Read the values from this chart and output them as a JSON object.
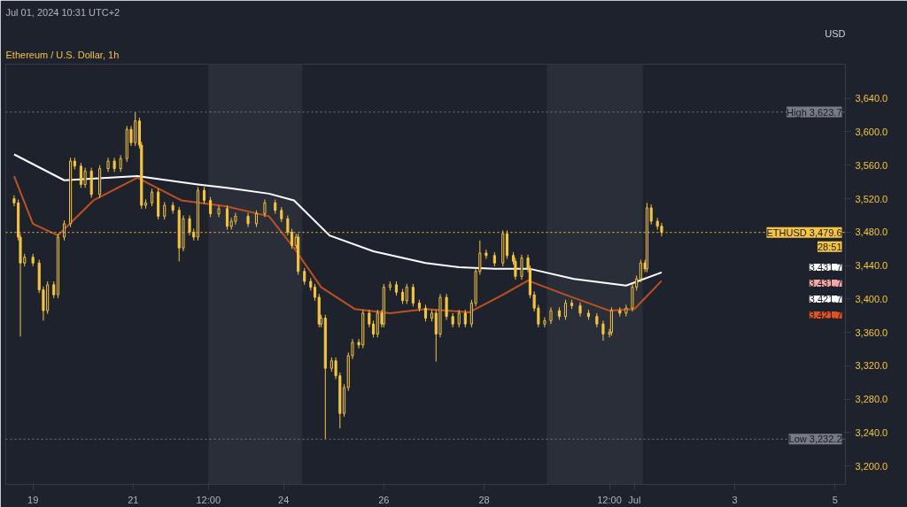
{
  "chart_data": {
    "type": "candlestick",
    "title": "Ethereum / U.S. Dollar, 1h",
    "ylabel": "USD",
    "annotations": [
      "Jul 01, 2024 10:31 UTC+2",
      "28:51",
      "3,431.7",
      "3,431.7",
      "3,421.7",
      "3,421.7"
    ],
    "color": "#f5c542",
    "x": [
      "2024-06-18T15:00",
      "2024-06-18T17:00",
      "2024-06-18T18:00",
      "2024-06-18T20:00",
      "2024-06-19T00:00",
      "2024-06-19T03:00",
      "2024-06-19T05:00",
      "2024-06-19T07:00",
      "2024-06-19T10:00",
      "2024-06-19T12:00",
      "2024-06-19T15:00",
      "2024-06-19T18:00",
      "2024-06-19T20:00",
      "2024-06-19T23:00",
      "2024-06-20T01:00",
      "2024-06-20T04:00",
      "2024-06-20T08:00",
      "2024-06-20T12:00",
      "2024-06-20T15:00",
      "2024-06-20T18:00",
      "2024-06-20T21:00",
      "2024-06-20T23:00",
      "2024-06-21T01:00",
      "2024-06-21T03:00",
      "2024-06-21T04:00",
      "2024-06-21T06:00",
      "2024-06-21T09:00",
      "2024-06-21T12:00",
      "2024-06-21T15:00",
      "2024-06-21T19:00",
      "2024-06-21T22:00",
      "2024-06-22T00:00",
      "2024-06-22T03:00",
      "2024-06-22T05:00",
      "2024-06-22T07:00",
      "2024-06-22T10:00",
      "2024-06-22T13:00",
      "2024-06-22T17:00",
      "2024-06-22T21:00",
      "2024-06-22T23:00",
      "2024-06-23T01:00",
      "2024-06-23T07:00",
      "2024-06-23T11:00",
      "2024-06-23T15:00",
      "2024-06-23T20:00",
      "2024-06-23T23:00",
      "2024-06-24T02:00",
      "2024-06-24T04:00",
      "2024-06-24T06:00",
      "2024-06-24T07:00",
      "2024-06-24T10:00",
      "2024-06-24T13:00",
      "2024-06-24T15:00",
      "2024-06-24T17:00",
      "2024-06-24T18:00",
      "2024-06-24T20:00",
      "2024-06-24T23:00",
      "2024-06-25T01:00",
      "2024-06-25T03:00",
      "2024-06-25T05:00",
      "2024-06-25T07:00",
      "2024-06-25T09:00",
      "2024-06-25T12:00",
      "2024-06-25T14:00",
      "2024-06-25T17:00",
      "2024-06-25T19:00",
      "2024-06-25T21:00",
      "2024-06-25T23:00",
      "2024-06-26T00:00",
      "2024-06-26T03:00",
      "2024-06-26T06:00",
      "2024-06-26T09:00",
      "2024-06-26T11:00",
      "2024-06-26T14:00",
      "2024-06-26T17:00",
      "2024-06-26T20:00",
      "2024-06-26T23:00",
      "2024-06-27T01:00",
      "2024-06-27T03:00",
      "2024-06-27T06:00",
      "2024-06-27T09:00",
      "2024-06-27T12:00",
      "2024-06-27T15:00",
      "2024-06-27T18:00",
      "2024-06-27T20:00",
      "2024-06-27T22:00",
      "2024-06-28T01:00",
      "2024-06-28T05:00",
      "2024-06-28T09:00",
      "2024-06-28T11:00",
      "2024-06-28T14:00",
      "2024-06-28T15:00",
      "2024-06-28T18:00",
      "2024-06-28T21:00",
      "2024-06-28T22:00",
      "2024-06-29T00:00",
      "2024-06-29T02:00",
      "2024-06-29T05:00",
      "2024-06-29T08:00",
      "2024-06-29T12:00",
      "2024-06-29T15:00",
      "2024-06-29T18:00",
      "2024-06-29T22:00",
      "2024-06-30T02:00",
      "2024-06-30T06:00",
      "2024-06-30T09:00",
      "2024-06-30T12:00",
      "2024-06-30T13:00",
      "2024-06-30T17:00",
      "2024-06-30T20:00",
      "2024-06-30T23:00",
      "2024-07-01T01:00",
      "2024-07-01T03:00",
      "2024-07-01T05:00",
      "2024-07-01T06:00",
      "2024-07-01T08:00",
      "2024-07-01T11:00",
      "2024-07-01T13:00"
    ],
    "ohlc": [
      [
        3520,
        3524,
        3511,
        3515
      ],
      [
        3515,
        3519,
        3470,
        3474
      ],
      [
        3474,
        3478,
        3355,
        3443
      ],
      [
        3443,
        3454,
        3439,
        3450
      ],
      [
        3450,
        3454,
        3439,
        3443
      ],
      [
        3443,
        3447,
        3407,
        3411
      ],
      [
        3411,
        3415,
        3374,
        3386
      ],
      [
        3386,
        3421,
        3382,
        3417
      ],
      [
        3417,
        3421,
        3401,
        3405
      ],
      [
        3405,
        3478,
        3401,
        3474
      ],
      [
        3474,
        3494,
        3470,
        3490
      ],
      [
        3490,
        3569,
        3486,
        3565
      ],
      [
        3565,
        3569,
        3555,
        3559
      ],
      [
        3559,
        3563,
        3533,
        3537
      ],
      [
        3537,
        3557,
        3533,
        3553
      ],
      [
        3553,
        3557,
        3521,
        3525
      ],
      [
        3525,
        3560,
        3521,
        3556
      ],
      [
        3556,
        3569,
        3552,
        3565
      ],
      [
        3565,
        3569,
        3552,
        3556
      ],
      [
        3556,
        3572,
        3552,
        3568
      ],
      [
        3568,
        3607,
        3564,
        3603
      ],
      [
        3603,
        3607,
        3583,
        3587
      ],
      [
        3587,
        3623.7,
        3583,
        3613
      ],
      [
        3613,
        3617,
        3580,
        3584
      ],
      [
        3584,
        3588,
        3508,
        3512
      ],
      [
        3512,
        3519,
        3508,
        3515
      ],
      [
        3515,
        3532,
        3511,
        3528
      ],
      [
        3528,
        3532,
        3495,
        3499
      ],
      [
        3499,
        3516,
        3495,
        3512
      ],
      [
        3512,
        3516,
        3502,
        3506
      ],
      [
        3506,
        3510,
        3445,
        3461
      ],
      [
        3461,
        3500,
        3457,
        3496
      ],
      [
        3496,
        3500,
        3476,
        3480
      ],
      [
        3480,
        3484,
        3470,
        3474
      ],
      [
        3474,
        3534,
        3470,
        3530
      ],
      [
        3530,
        3534,
        3514,
        3518
      ],
      [
        3518,
        3522,
        3498,
        3502
      ],
      [
        3502,
        3512,
        3498,
        3508
      ],
      [
        3508,
        3512,
        3483,
        3487
      ],
      [
        3487,
        3497,
        3483,
        3493
      ],
      [
        3493,
        3503,
        3489,
        3499
      ],
      [
        3499,
        3503,
        3486,
        3490
      ],
      [
        3490,
        3506,
        3486,
        3502
      ],
      [
        3502,
        3519,
        3498,
        3515
      ],
      [
        3515,
        3519,
        3502,
        3506
      ],
      [
        3506,
        3510,
        3492,
        3496
      ],
      [
        3496,
        3500,
        3476,
        3480
      ],
      [
        3480,
        3484,
        3460,
        3464
      ],
      [
        3464,
        3478,
        3460,
        3474
      ],
      [
        3474,
        3478,
        3429,
        3433
      ],
      [
        3433,
        3437,
        3417,
        3421
      ],
      [
        3421,
        3425,
        3410,
        3414
      ],
      [
        3414,
        3418,
        3398,
        3402
      ],
      [
        3402,
        3406,
        3366,
        3370
      ],
      [
        3370,
        3381,
        3366,
        3377
      ],
      [
        3377,
        3381,
        3232.2,
        3317
      ],
      [
        3317,
        3330,
        3313,
        3326
      ],
      [
        3326,
        3330,
        3304,
        3308
      ],
      [
        3308,
        3312,
        3245,
        3263
      ],
      [
        3263,
        3298,
        3259,
        3294
      ],
      [
        3294,
        3336,
        3290,
        3332
      ],
      [
        3332,
        3352,
        3328,
        3348
      ],
      [
        3348,
        3352,
        3341,
        3345
      ],
      [
        3345,
        3387,
        3341,
        3383
      ],
      [
        3383,
        3387,
        3366,
        3370
      ],
      [
        3370,
        3374,
        3354,
        3358
      ],
      [
        3358,
        3387,
        3354,
        3383
      ],
      [
        3383,
        3387,
        3366,
        3370
      ],
      [
        3370,
        3418,
        3366,
        3414
      ],
      [
        3414,
        3421,
        3410,
        3417
      ],
      [
        3417,
        3421,
        3404,
        3408
      ],
      [
        3408,
        3412,
        3394,
        3398
      ],
      [
        3398,
        3418,
        3394,
        3414
      ],
      [
        3414,
        3418,
        3391,
        3395
      ],
      [
        3395,
        3399,
        3385,
        3389
      ],
      [
        3389,
        3393,
        3373,
        3377
      ],
      [
        3377,
        3387,
        3373,
        3383
      ],
      [
        3383,
        3387,
        3325,
        3358
      ],
      [
        3358,
        3406,
        3354,
        3402
      ],
      [
        3402,
        3406,
        3375,
        3379
      ],
      [
        3379,
        3383,
        3366,
        3370
      ],
      [
        3370,
        3387,
        3366,
        3383
      ],
      [
        3383,
        3387,
        3366,
        3370
      ],
      [
        3370,
        3399,
        3366,
        3395
      ],
      [
        3395,
        3437,
        3391,
        3433
      ],
      [
        3433,
        3470,
        3429,
        3455
      ],
      [
        3455,
        3459,
        3448,
        3452
      ],
      [
        3452,
        3456,
        3439,
        3443
      ],
      [
        3443,
        3482,
        3439,
        3478
      ],
      [
        3478,
        3482,
        3448,
        3452
      ],
      [
        3452,
        3456,
        3441,
        3445
      ],
      [
        3445,
        3449,
        3423,
        3427
      ],
      [
        3427,
        3453,
        3423,
        3449
      ],
      [
        3449,
        3453,
        3432,
        3436
      ],
      [
        3436,
        3440,
        3401,
        3405
      ],
      [
        3405,
        3409,
        3385,
        3389
      ],
      [
        3389,
        3393,
        3366,
        3370
      ],
      [
        3370,
        3378,
        3366,
        3374
      ],
      [
        3374,
        3390,
        3370,
        3386
      ],
      [
        3386,
        3390,
        3375,
        3379
      ],
      [
        3379,
        3399,
        3375,
        3395
      ],
      [
        3395,
        3399,
        3388,
        3392
      ],
      [
        3392,
        3396,
        3379,
        3383
      ],
      [
        3383,
        3387,
        3375,
        3379
      ],
      [
        3379,
        3383,
        3366,
        3370
      ],
      [
        3370,
        3374,
        3350,
        3358
      ],
      [
        3358,
        3364,
        3354,
        3360
      ],
      [
        3360,
        3390,
        3356,
        3386
      ],
      [
        3386,
        3390,
        3379,
        3383
      ],
      [
        3383,
        3393,
        3379,
        3389
      ],
      [
        3389,
        3418,
        3385,
        3414
      ],
      [
        3414,
        3428,
        3410,
        3424
      ],
      [
        3424,
        3447,
        3420,
        3443
      ],
      [
        3443,
        3447,
        3432,
        3436
      ],
      [
        3436,
        3515,
        3432,
        3509
      ],
      [
        3509,
        3513,
        3489,
        3493
      ],
      [
        3493,
        3497,
        3483,
        3487
      ],
      [
        3487,
        3491,
        3475,
        3479.6
      ]
    ],
    "series": [
      {
        "type": "line",
        "color": "#ffffff",
        "x": [
          "2024-06-18T15:00",
          "2024-06-19T15:00",
          "2024-06-21T02:00",
          "2024-06-22T07:00",
          "2024-06-23T00:00",
          "2024-06-23T17:00",
          "2024-06-24T05:00",
          "2024-06-24T22:00",
          "2024-06-25T19:00",
          "2024-06-26T20:00",
          "2024-06-27T12:00",
          "2024-06-28T05:00",
          "2024-06-28T22:00",
          "2024-06-29T19:00",
          "2024-06-30T20:00",
          "2024-07-01T13:00"
        ],
        "values": [
          3573,
          3542,
          3547,
          3537,
          3532,
          3526,
          3518,
          3476,
          3457,
          3443,
          3438,
          3436,
          3436,
          3424,
          3416,
          3431.7
        ]
      },
      {
        "type": "line",
        "color": "#c0501f",
        "x": [
          "2024-06-18T15:00",
          "2024-06-19T00:00",
          "2024-06-19T12:00",
          "2024-06-20T05:00",
          "2024-06-21T02:00",
          "2024-06-21T23:00",
          "2024-06-22T20:00",
          "2024-06-23T17:00",
          "2024-06-24T05:00",
          "2024-06-24T18:00",
          "2024-06-25T10:00",
          "2024-06-26T03:00",
          "2024-06-26T20:00",
          "2024-06-27T17:00",
          "2024-06-28T09:00",
          "2024-06-28T21:00",
          "2024-06-29T15:00",
          "2024-06-30T12:00",
          "2024-07-01T00:00",
          "2024-07-01T13:00"
        ],
        "values": [
          3547,
          3490,
          3476,
          3518,
          3545,
          3518,
          3511,
          3499,
          3461,
          3414,
          3388,
          3383,
          3388,
          3384,
          3405,
          3422,
          3405,
          3386,
          3388,
          3421.7
        ]
      }
    ],
    "xlim": [
      "2024-06-18T11:00",
      "2024-07-05T05:00"
    ],
    "ylim": [
      3178,
      3681
    ],
    "xticks": [
      {
        "value": "2024-06-19",
        "label": "19"
      },
      {
        "value": "2024-06-21",
        "label": "21"
      },
      {
        "value": "2024-06-22T12:00",
        "label": "12:00"
      },
      {
        "value": "2024-06-24",
        "label": "24"
      },
      {
        "value": "2024-06-26",
        "label": "26"
      },
      {
        "value": "2024-06-28",
        "label": "28"
      },
      {
        "value": "2024-06-30T12:00",
        "label": "12:00"
      },
      {
        "value": "2024-07-01",
        "label": "Jul"
      },
      {
        "value": "2024-07-03",
        "label": "3"
      },
      {
        "value": "2024-07-05",
        "label": "5"
      }
    ],
    "yticks": [
      {
        "value": 3200,
        "label": "3,200.0"
      },
      {
        "value": 3240,
        "label": "3,240.0"
      },
      {
        "value": 3280,
        "label": "3,280.0"
      },
      {
        "value": 3320,
        "label": "3,320.0"
      },
      {
        "value": 3360,
        "label": "3,360.0"
      },
      {
        "value": 3400,
        "label": "3,400.0"
      },
      {
        "value": 3440,
        "label": "3,440.0"
      },
      {
        "value": 3480,
        "label": "3,480.0"
      },
      {
        "value": 3520,
        "label": "3,520.0"
      },
      {
        "value": 3560,
        "label": "3,560.0"
      },
      {
        "value": 3600,
        "label": "3,600.0"
      },
      {
        "value": 3640,
        "label": "3,640.0"
      }
    ],
    "ref_lines": [
      {
        "axis": "y",
        "value": 3623.7,
        "label": "High 3,623.7",
        "color": "#787b86",
        "line_style": "dotted"
      },
      {
        "axis": "y",
        "value": 3232.2,
        "label": "Low 3,232.2",
        "color": "#787b86",
        "line_style": "dotted"
      },
      {
        "axis": "y",
        "value": 3479.6,
        "label": "ETHUSD 3,479.6",
        "color": "#f5c542",
        "line_style": "dotted"
      }
    ],
    "bands": [
      {
        "axis": "x",
        "from": "2024-06-22T12:00",
        "to": "2024-06-24T09:00",
        "color": "#2a2e39"
      },
      {
        "axis": "x",
        "from": "2024-06-29T06:00",
        "to": "2024-07-01T04:00",
        "color": "#2a2e39"
      }
    ]
  }
}
